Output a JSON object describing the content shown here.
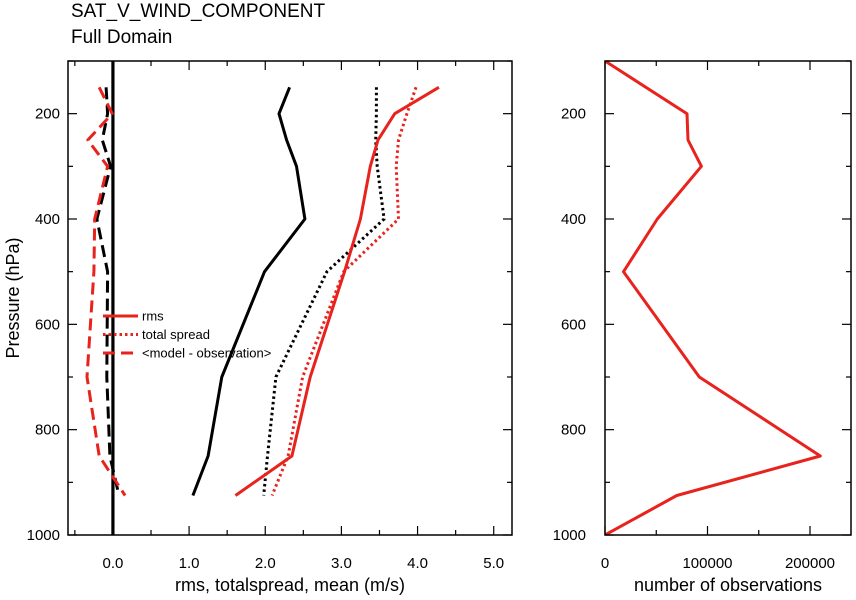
{
  "chart_data": [
    {
      "type": "line",
      "title": "SAT_V_WIND_COMPONENT",
      "subtitle": "Full Domain",
      "xlabel": "rms, totalspread, mean (m/s)",
      "ylabel": "Pressure (hPa)",
      "xlim": [
        -0.59,
        5.24
      ],
      "ylim": [
        100,
        1000
      ],
      "y_inverted": true,
      "xticks": [
        0,
        1,
        2,
        3,
        4,
        5
      ],
      "xtick_labels": [
        "0.0",
        "1.0",
        "2.0",
        "3.0",
        "4.0",
        "5.0"
      ],
      "x_minor_step": 0.5,
      "yticks": [
        200,
        400,
        600,
        800,
        1000
      ],
      "ytick_labels": [
        "200",
        "400",
        "600",
        "800",
        "1000"
      ],
      "y_minor_step": 100,
      "reference_line_x": 0,
      "grid": false,
      "legend": "center-left",
      "y": [
        150,
        200,
        250,
        300,
        400,
        500,
        700,
        850,
        925
      ],
      "series": [
        {
          "name": "rms",
          "color": "#e8231e",
          "style": "solid",
          "x": [
            4.28,
            3.7,
            3.48,
            3.38,
            3.25,
            3.04,
            2.59,
            2.35,
            1.61
          ]
        },
        {
          "name": "total spread",
          "color": "#e8231e",
          "style": "dotted",
          "x": [
            3.98,
            3.86,
            3.75,
            3.72,
            3.75,
            3.03,
            2.49,
            2.3,
            2.09
          ]
        },
        {
          "name": "<model - observation>",
          "color": "#e8231e",
          "style": "dashed",
          "x": [
            -0.18,
            -0.01,
            -0.33,
            -0.07,
            -0.24,
            -0.25,
            -0.34,
            -0.18,
            0.16
          ]
        },
        {
          "color": "#000000",
          "style": "solid",
          "x": [
            2.32,
            2.18,
            2.28,
            2.41,
            2.52,
            1.99,
            1.43,
            1.25,
            1.05
          ]
        },
        {
          "color": "#000000",
          "style": "dotted",
          "x": [
            3.46,
            3.46,
            3.45,
            3.47,
            3.56,
            2.81,
            2.14,
            2.03,
            1.98
          ]
        },
        {
          "color": "#000000",
          "style": "dashed",
          "x": [
            -0.09,
            -0.07,
            -0.14,
            -0.03,
            -0.21,
            -0.07,
            -0.08,
            -0.04,
            0.08
          ]
        }
      ]
    },
    {
      "type": "line",
      "xlabel": "number of observations",
      "xlim": [
        0,
        240000
      ],
      "ylim": [
        100,
        1000
      ],
      "y_inverted": true,
      "xticks": [
        0,
        100000,
        200000
      ],
      "xtick_labels": [
        "0",
        "100000",
        "200000"
      ],
      "x_minor_step": 50000,
      "yticks": [
        200,
        400,
        600,
        800,
        1000
      ],
      "ytick_labels": [
        "200",
        "400",
        "600",
        "800",
        "1000"
      ],
      "y_minor_step": 100,
      "grid": false,
      "y": [
        100,
        200,
        250,
        300,
        400,
        500,
        700,
        850,
        925,
        1000
      ],
      "series": [
        {
          "color": "#e8231e",
          "style": "solid",
          "x": [
            0,
            80000,
            81000,
            94000,
            51000,
            18000,
            92000,
            210000,
            70000,
            0
          ]
        }
      ]
    }
  ]
}
